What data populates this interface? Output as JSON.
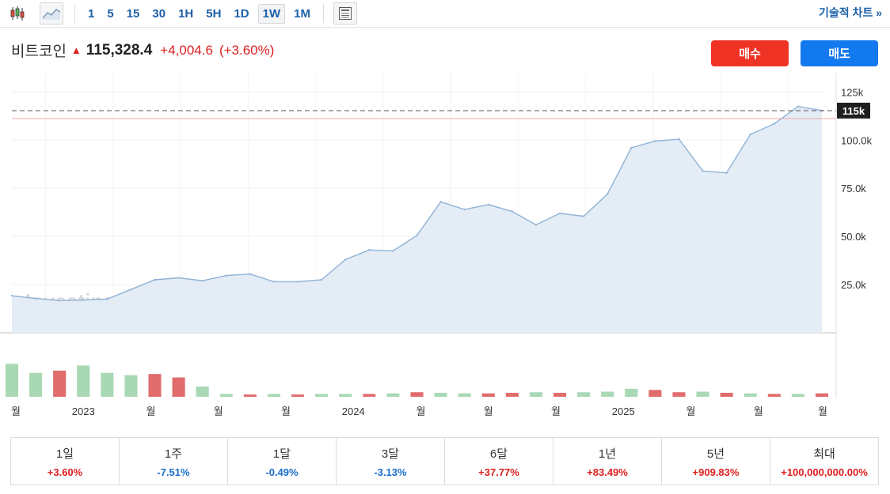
{
  "toolbar": {
    "timeframes": [
      "1",
      "5",
      "15",
      "30",
      "1H",
      "5H",
      "1D",
      "1W",
      "1M"
    ],
    "active_timeframe": "1W",
    "tech_chart_label": "기술적 차트 »"
  },
  "quote": {
    "name": "비트코인",
    "price": "115,328.4",
    "change": "+4,004.6",
    "change_pct": "(+3.60%)",
    "direction_color": "#dd1f1f"
  },
  "actions": {
    "buy_label": "매수",
    "sell_label": "매도"
  },
  "watermark": "Investing.com",
  "performance": [
    {
      "label": "1일",
      "value": "+3.60%",
      "dir": "pos"
    },
    {
      "label": "1주",
      "value": "-7.51%",
      "dir": "neg"
    },
    {
      "label": "1달",
      "value": "-0.49%",
      "dir": "neg"
    },
    {
      "label": "3달",
      "value": "-3.13%",
      "dir": "neg"
    },
    {
      "label": "6달",
      "value": "+37.77%",
      "dir": "pos"
    },
    {
      "label": "1년",
      "value": "+83.49%",
      "dir": "pos"
    },
    {
      "label": "5년",
      "value": "+909.83%",
      "dir": "pos"
    },
    {
      "label": "최대",
      "value": "+100,000,000.00%",
      "dir": "pos"
    }
  ],
  "chart_data": {
    "type": "area",
    "grid": true,
    "ylim": [
      0,
      135000
    ],
    "y_ticks": [
      25000,
      50000,
      75000,
      100000,
      125000
    ],
    "y_tick_labels": [
      "25.0k",
      "50.0k",
      "75.0k",
      "100.0k",
      "125k"
    ],
    "current_value": 115328.4,
    "current_label": "115k",
    "x_tick_labels": [
      "월",
      "2023",
      "월",
      "월",
      "월",
      "2024",
      "월",
      "월",
      "월",
      "2025",
      "월",
      "월",
      "월"
    ],
    "x": [
      "2022-10",
      "2022-11",
      "2022-12",
      "2023-01",
      "2023-02",
      "2023-03",
      "2023-04",
      "2023-05",
      "2023-06",
      "2023-07",
      "2023-08",
      "2023-09",
      "2023-10",
      "2023-11",
      "2023-12",
      "2024-01",
      "2024-02",
      "2024-03",
      "2024-04",
      "2024-05",
      "2024-06",
      "2024-07",
      "2024-08",
      "2024-09",
      "2024-10",
      "2024-11",
      "2024-12",
      "2025-01",
      "2025-02",
      "2025-03",
      "2025-04",
      "2025-05",
      "2025-06",
      "2025-07",
      "2025-08"
    ],
    "price": [
      19200,
      17800,
      16700,
      17000,
      17500,
      22500,
      27500,
      28500,
      27000,
      29700,
      30500,
      26500,
      26500,
      27500,
      38000,
      43000,
      42500,
      50500,
      68000,
      64000,
      66500,
      63000,
      56000,
      62000,
      60500,
      72000,
      96000,
      99500,
      100500,
      84000,
      83000,
      103000,
      108500,
      117500,
      115328
    ],
    "volume": {
      "values": [
        0.58,
        0.42,
        0.46,
        0.55,
        0.42,
        0.38,
        0.4,
        0.34,
        0.18,
        0.05,
        0.04,
        0.05,
        0.04,
        0.05,
        0.05,
        0.05,
        0.06,
        0.08,
        0.07,
        0.06,
        0.06,
        0.07,
        0.08,
        0.07,
        0.08,
        0.09,
        0.14,
        0.12,
        0.08,
        0.09,
        0.07,
        0.06,
        0.05,
        0.05,
        0.06
      ],
      "dir": [
        "up",
        "up",
        "down",
        "up",
        "up",
        "up",
        "down",
        "down",
        "up",
        "up",
        "down",
        "up",
        "down",
        "up",
        "up",
        "down",
        "up",
        "down",
        "up",
        "up",
        "down",
        "down",
        "up",
        "down",
        "up",
        "up",
        "up",
        "down",
        "down",
        "up",
        "down",
        "up",
        "down",
        "up",
        "down"
      ]
    }
  }
}
